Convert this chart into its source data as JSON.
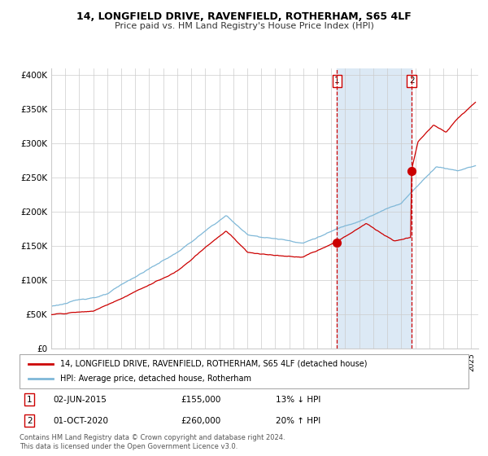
{
  "title": "14, LONGFIELD DRIVE, RAVENFIELD, ROTHERHAM, S65 4LF",
  "subtitle": "Price paid vs. HM Land Registry's House Price Index (HPI)",
  "ylim": [
    0,
    410000
  ],
  "yticks": [
    0,
    50000,
    100000,
    150000,
    200000,
    250000,
    300000,
    350000,
    400000
  ],
  "ytick_labels": [
    "£0",
    "£50K",
    "£100K",
    "£150K",
    "£200K",
    "£250K",
    "£300K",
    "£350K",
    "£400K"
  ],
  "xlim_start": 1995.0,
  "xlim_end": 2025.5,
  "hpi_color": "#7fb8d8",
  "price_color": "#cc0000",
  "sale1_date": 2015.42,
  "sale1_price": 155000,
  "sale2_date": 2020.75,
  "sale2_price": 260000,
  "sale1_label": "02-JUN-2015",
  "sale1_price_label": "£155,000",
  "sale1_hpi_label": "13% ↓ HPI",
  "sale2_label": "01-OCT-2020",
  "sale2_price_label": "£260,000",
  "sale2_hpi_label": "20% ↑ HPI",
  "legend_line1": "14, LONGFIELD DRIVE, RAVENFIELD, ROTHERHAM, S65 4LF (detached house)",
  "legend_line2": "HPI: Average price, detached house, Rotherham",
  "footnote": "Contains HM Land Registry data © Crown copyright and database right 2024.\nThis data is licensed under the Open Government Licence v3.0.",
  "shade_color": "#dce9f5",
  "grid_color": "#cccccc",
  "background_color": "#ffffff"
}
